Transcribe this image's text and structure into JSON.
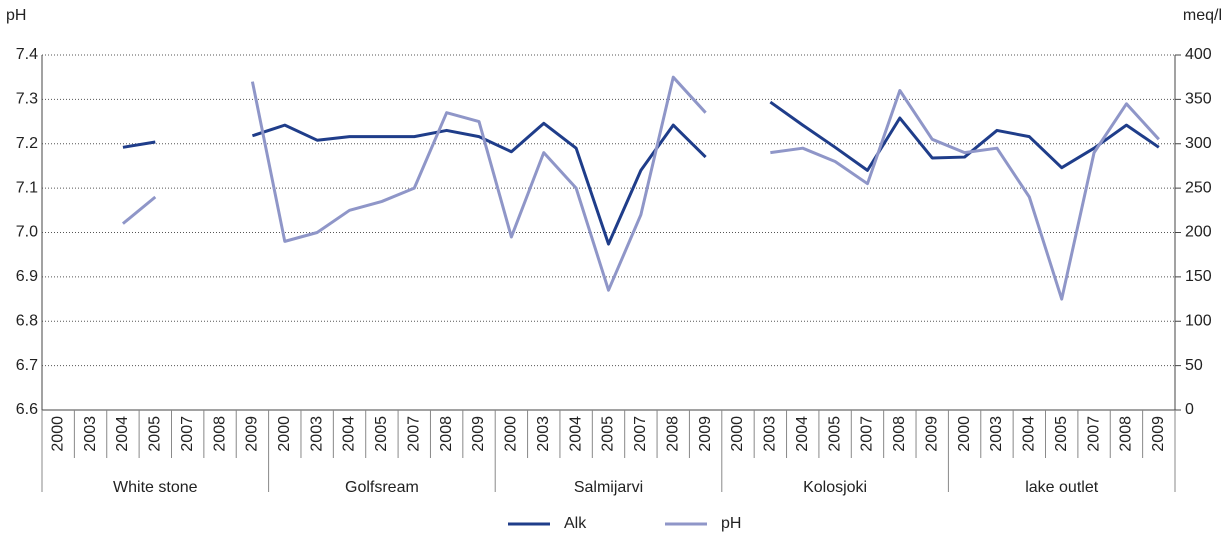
{
  "chart_data": {
    "type": "line",
    "y_label": "pH",
    "y2_label": "meq/l",
    "groups": [
      "White stone",
      "Golfsream",
      "Salmijarvi",
      "Kolosjoki",
      "lake outlet"
    ],
    "categories": [
      "2000",
      "2003",
      "2004",
      "2005",
      "2007",
      "2008",
      "2009",
      "2000",
      "2003",
      "2004",
      "2005",
      "2007",
      "2008",
      "2009",
      "2000",
      "2003",
      "2004",
      "2005",
      "2007",
      "2008",
      "2009",
      "2000",
      "2003",
      "2004",
      "2005",
      "2007",
      "2008",
      "2009",
      "2000",
      "2003",
      "2004",
      "2005",
      "2007",
      "2008",
      "2009"
    ],
    "series": [
      {
        "name": "Alk",
        "color": "#1f3d8a",
        "axis": "y2",
        "values": [
          null,
          null,
          296,
          302,
          null,
          null,
          309,
          321,
          304,
          308,
          308,
          308,
          315,
          308,
          291,
          323,
          295,
          187,
          270,
          321,
          285,
          null,
          347,
          321,
          296,
          270,
          329,
          284,
          285,
          315,
          308,
          273,
          295,
          321,
          296
        ]
      },
      {
        "name": "pH",
        "color": "#8f96c8",
        "values": [
          null,
          null,
          7.02,
          7.08,
          null,
          null,
          7.34,
          6.98,
          7.0,
          7.05,
          7.07,
          7.1,
          7.27,
          7.25,
          6.99,
          7.18,
          7.1,
          6.87,
          7.04,
          7.35,
          7.27,
          null,
          7.18,
          7.19,
          7.16,
          7.11,
          7.32,
          7.21,
          7.18,
          7.19,
          7.08,
          6.85,
          7.18,
          7.29,
          7.21
        ]
      }
    ],
    "ylim": [
      6.6,
      7.4
    ],
    "yticks": [
      6.6,
      6.7,
      6.8,
      6.9,
      {
        "value": 7,
        "label": "7.0"
      },
      7.1,
      7.2,
      7.3,
      7.4
    ],
    "y2lim": [
      0,
      400
    ],
    "y2ticks": [
      0,
      50,
      100,
      150,
      200,
      250,
      300,
      350,
      400
    ],
    "grid": true,
    "legend": "bottom"
  }
}
